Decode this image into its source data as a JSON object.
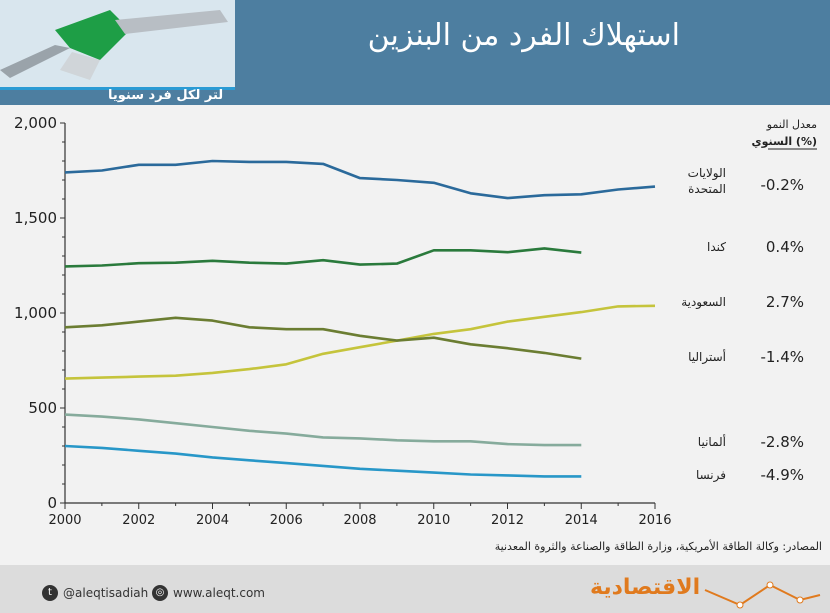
{
  "title": "استهلاك الفرد من البنزين",
  "unit_label": "لتر لكل فرد سنويا",
  "growth_header_line1": "معدل النمو",
  "growth_header_line2": "السنوي (%)",
  "source": "المصادر: وكالة الطاقة الأمريكية، وزارة الطاقة والصناعة والثروة المعدنية",
  "footer": {
    "twitter": "@aleqtisadiah",
    "website": "www.aleqt.com",
    "logo": "الاقتصادية"
  },
  "colors": {
    "header_bg": "#4d7ea0",
    "accent": "#2b9bd4",
    "usa": "#2b6a9b",
    "canada": "#2a7a3c",
    "saudi": "#c5c43c",
    "australia": "#6b7d32",
    "germany": "#86ab9c",
    "france": "#2897c8"
  },
  "chart_data": {
    "type": "line",
    "x": [
      2000,
      2001,
      2002,
      2003,
      2004,
      2005,
      2006,
      2007,
      2008,
      2009,
      2010,
      2011,
      2012,
      2013,
      2014,
      2015,
      2016
    ],
    "xticks": [
      "2000",
      "2002",
      "2004",
      "2006",
      "2008",
      "2010",
      "2012",
      "2014",
      "2016"
    ],
    "yticks": [
      "2,000",
      "1,500",
      "1,000",
      "500",
      "0"
    ],
    "xlim": [
      2000,
      2016
    ],
    "ylim": [
      0,
      2000
    ],
    "grid": false,
    "series": [
      {
        "key": "usa",
        "name": "الولايات المتحدة",
        "growth": "-0.2%",
        "values": [
          1740,
          1750,
          1780,
          1780,
          1800,
          1795,
          1795,
          1785,
          1710,
          1700,
          1685,
          1630,
          1605,
          1620,
          1625,
          1650,
          1665
        ]
      },
      {
        "key": "canada",
        "name": "كندا",
        "growth": "0.4%",
        "values": [
          1245,
          1250,
          1262,
          1265,
          1275,
          1265,
          1260,
          1278,
          1255,
          1260,
          1330,
          1330,
          1320,
          1340,
          1318,
          null,
          null
        ]
      },
      {
        "key": "saudi",
        "name": "السعودية",
        "growth": "2.7%",
        "values": [
          655,
          660,
          665,
          670,
          685,
          705,
          730,
          785,
          820,
          855,
          890,
          915,
          955,
          980,
          1005,
          1035,
          1038
        ]
      },
      {
        "key": "australia",
        "name": "أستراليا",
        "growth": "-1.4%",
        "values": [
          925,
          935,
          955,
          975,
          960,
          925,
          915,
          915,
          880,
          855,
          870,
          835,
          815,
          790,
          760,
          null,
          null
        ]
      },
      {
        "key": "germany",
        "name": "ألمانيا",
        "growth": "-2.8%",
        "values": [
          465,
          455,
          440,
          420,
          400,
          380,
          365,
          345,
          340,
          330,
          325,
          325,
          310,
          305,
          305,
          null,
          null
        ]
      },
      {
        "key": "france",
        "name": "فرنسا",
        "growth": "-4.9%",
        "values": [
          300,
          290,
          275,
          260,
          240,
          225,
          210,
          195,
          180,
          170,
          160,
          150,
          145,
          140,
          140,
          null,
          null
        ]
      }
    ]
  }
}
